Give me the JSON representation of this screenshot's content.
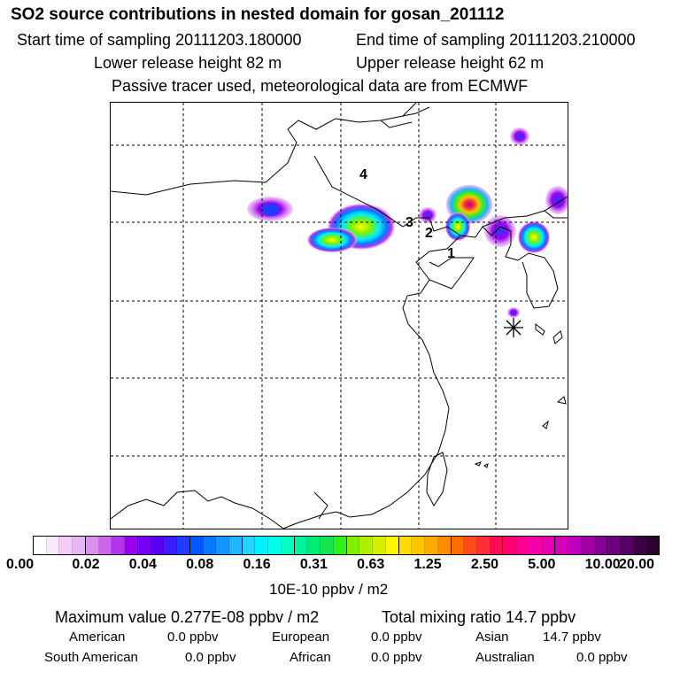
{
  "header": {
    "title": "SO2 source contributions in nested domain for gosan_201112",
    "start_time": "Start time of sampling 20111203.180000",
    "end_time": "End time of sampling 20111203.210000",
    "lower_release": "Lower release height   82 m",
    "upper_release": "Upper release height   62 m",
    "note": "Passive tracer used, meteorological data are from ECMWF"
  },
  "map": {
    "region_labels": [
      "1",
      "2",
      "3",
      "4"
    ],
    "receptor_marker": "asterisk-icon"
  },
  "colorbar": {
    "tick_labels": [
      "0.00",
      "0.02",
      "0.04",
      "0.08",
      "0.16",
      "0.31",
      "0.63",
      "1.25",
      "2.50",
      "5.00",
      "10.00",
      "20.00"
    ],
    "colors": [
      "#ffffff",
      "#fbe6fb",
      "#f4ccf6",
      "#eab3f3",
      "#dc8ff1",
      "#cc66ee",
      "#b533ee",
      "#9d00f0",
      "#7a00f5",
      "#5a00fa",
      "#3a1cff",
      "#1f3cff",
      "#0055ff",
      "#0a78ff",
      "#1496ff",
      "#1eb4ff",
      "#28d2ff",
      "#00f0ff",
      "#00ffe6",
      "#00ffc0",
      "#00f59a",
      "#00eb73",
      "#14e64b",
      "#32f01e",
      "#7cf000",
      "#aef000",
      "#d8f000",
      "#fff500",
      "#ffdc00",
      "#ffc300",
      "#ffa800",
      "#ff8c00",
      "#ff6e00",
      "#ff4b19",
      "#ff2d37",
      "#ff0a55",
      "#ff0073",
      "#ff0096",
      "#f500aa",
      "#e600b4",
      "#d200b9",
      "#be00be",
      "#a000a5",
      "#870096",
      "#6e0082",
      "#550064",
      "#3c0046",
      "#2d0032"
    ],
    "unit_label": "10E-10 ppbv / m2"
  },
  "stats": {
    "max_value": "Maximum value  0.277E-08 ppbv / m2",
    "total_mixing": "Total mixing ratio      14.7 ppbv",
    "rows": [
      [
        {
          "name": "American",
          "value": "0.0 ppbv"
        },
        {
          "name": "European",
          "value": "0.0 ppbv"
        },
        {
          "name": "Asian",
          "value": "14.7 ppbv"
        }
      ],
      [
        {
          "name": "South American",
          "value": "0.0 ppbv"
        },
        {
          "name": "African",
          "value": "0.0 ppbv"
        },
        {
          "name": "Australian",
          "value": "0.0 ppbv"
        }
      ]
    ]
  }
}
